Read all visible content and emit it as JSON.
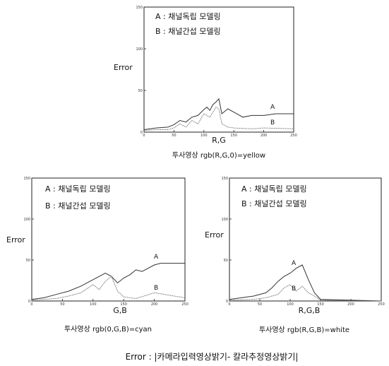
{
  "footer": "Error : |카메라입력영상밝기- 칼라추정영상밝기|",
  "chart_data": [
    {
      "type": "line",
      "ylabel": "Error",
      "xlabel": "R,G",
      "caption": "투사영상 rgb(R,G,0)=yellow",
      "xlim": [
        0,
        250
      ],
      "ylim": [
        0,
        150
      ],
      "xticks": [
        0,
        50,
        100,
        150,
        200,
        250
      ],
      "yticks": [
        0,
        50,
        100,
        150
      ],
      "legend": [
        "A : 채널독립 모델링",
        "B : 채널간섭 모델링"
      ],
      "series": [
        {
          "name": "A",
          "x": [
            0,
            20,
            40,
            50,
            60,
            70,
            80,
            90,
            100,
            105,
            110,
            115,
            120,
            125,
            130,
            140,
            150,
            165,
            180,
            200,
            220,
            250
          ],
          "y": [
            3,
            5,
            6,
            9,
            14,
            12,
            18,
            20,
            27,
            30,
            26,
            33,
            36,
            40,
            22,
            28,
            24,
            18,
            20,
            20,
            22,
            22
          ]
        },
        {
          "name": "B",
          "x": [
            0,
            20,
            40,
            50,
            60,
            70,
            80,
            90,
            100,
            110,
            120,
            125,
            130,
            140,
            150,
            180,
            200,
            250
          ],
          "y": [
            2,
            3,
            3,
            5,
            10,
            6,
            14,
            10,
            22,
            18,
            30,
            28,
            10,
            6,
            5,
            4,
            5,
            4
          ]
        }
      ],
      "series_labels": [
        "A",
        "B"
      ]
    },
    {
      "type": "line",
      "ylabel": "Error",
      "xlabel": "G,B",
      "caption": "투사영상 rgb(0,G,B)=cyan",
      "xlim": [
        0,
        250
      ],
      "ylim": [
        0,
        150
      ],
      "xticks": [
        0,
        50,
        100,
        150,
        200,
        250
      ],
      "yticks": [
        0,
        50,
        100,
        150
      ],
      "legend": [
        "A : 채널독립 모델링",
        "B : 채널간섭 모델링"
      ],
      "series": [
        {
          "name": "A",
          "x": [
            0,
            20,
            40,
            60,
            80,
            100,
            110,
            120,
            130,
            140,
            150,
            160,
            170,
            180,
            190,
            200,
            210,
            250
          ],
          "y": [
            2,
            4,
            8,
            12,
            18,
            26,
            30,
            34,
            30,
            22,
            28,
            32,
            38,
            36,
            40,
            44,
            46,
            46
          ]
        },
        {
          "name": "B",
          "x": [
            0,
            40,
            60,
            80,
            100,
            110,
            120,
            130,
            140,
            150,
            170,
            200,
            250
          ],
          "y": [
            1,
            3,
            6,
            10,
            20,
            14,
            24,
            30,
            12,
            5,
            3,
            10,
            4
          ]
        }
      ],
      "series_labels": [
        "A",
        "B"
      ]
    },
    {
      "type": "line",
      "ylabel": "Error",
      "xlabel": "R,G,B",
      "caption": "투사영상 rgb(R,G,B)=white",
      "xlim": [
        0,
        250
      ],
      "ylim": [
        0,
        150
      ],
      "xticks": [
        0,
        50,
        100,
        150,
        200,
        250
      ],
      "yticks": [
        0,
        50,
        100,
        150
      ],
      "legend": [
        "A : 채널독립 모델링",
        "B : 채널간섭 모델링"
      ],
      "series": [
        {
          "name": "A",
          "x": [
            0,
            20,
            40,
            60,
            70,
            80,
            90,
            100,
            110,
            120,
            130,
            140,
            150,
            250
          ],
          "y": [
            2,
            4,
            6,
            10,
            16,
            24,
            30,
            34,
            40,
            44,
            26,
            10,
            2,
            0
          ]
        },
        {
          "name": "B",
          "x": [
            0,
            40,
            60,
            80,
            90,
            100,
            110,
            120,
            130,
            140,
            150,
            250
          ],
          "y": [
            1,
            2,
            4,
            8,
            16,
            20,
            12,
            18,
            10,
            6,
            1,
            0
          ]
        }
      ],
      "series_labels": [
        "A",
        "B"
      ]
    }
  ]
}
